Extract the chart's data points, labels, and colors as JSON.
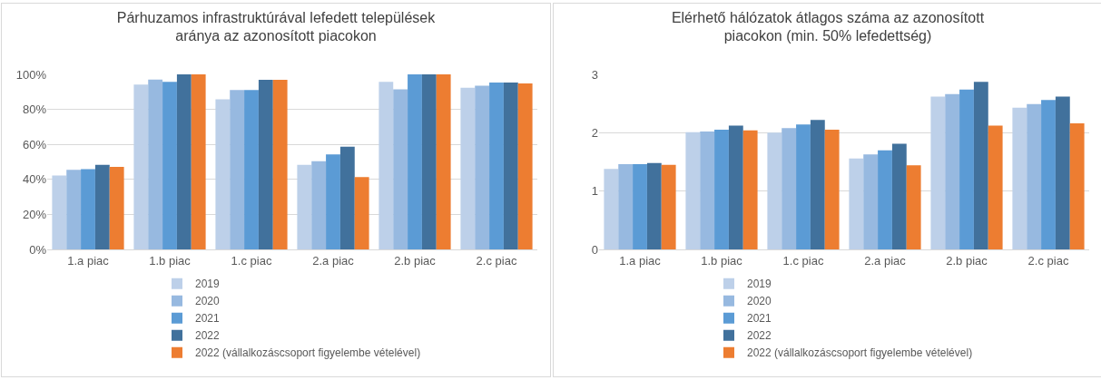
{
  "chart_data": [
    {
      "type": "bar",
      "title": "Párhuzamos infrastruktúrával lefedett települések\naránya az azonosított piacokon",
      "categories": [
        "1.a piac",
        "1.b piac",
        "1.c piac",
        "2.a piac",
        "2.b piac",
        "2.c piac"
      ],
      "series": [
        {
          "name": "2019",
          "color": "#bdd0e9",
          "values": [
            42.2,
            94.2,
            85.8,
            48.3,
            95.7,
            92.3
          ]
        },
        {
          "name": "2020",
          "color": "#97b9e0",
          "values": [
            45.5,
            97,
            91,
            50.4,
            91.5,
            93.5
          ]
        },
        {
          "name": "2021",
          "color": "#5b9bd5",
          "values": [
            45.8,
            95.7,
            91,
            54.3,
            100,
            95.4
          ]
        },
        {
          "name": "2022",
          "color": "#41719c",
          "values": [
            48.3,
            100,
            96.9,
            58.7,
            100,
            95.4
          ]
        },
        {
          "name": "2022 (vállalkozáscsoport figyelembe vételével)",
          "color": "#ed7d31",
          "values": [
            47.2,
            100,
            96.9,
            41.3,
            100,
            94.8
          ]
        }
      ],
      "ylim": [
        0,
        100
      ],
      "yticks": [
        {
          "value": 0,
          "label": "0%"
        },
        {
          "value": 20,
          "label": "20%"
        },
        {
          "value": 40,
          "label": "40%"
        },
        {
          "value": 60,
          "label": "60%"
        },
        {
          "value": 80,
          "label": "80%"
        },
        {
          "value": 100,
          "label": "100%"
        }
      ],
      "grid": "y",
      "legend": "bottom"
    },
    {
      "type": "bar",
      "title": "Elérhető hálózatok átlagos száma az azonosított\npiacokon (min. 50% lefedettség)",
      "categories": [
        "1.a piac",
        "1.b piac",
        "1.c piac",
        "2.a piac",
        "2.b piac",
        "2.c piac"
      ],
      "series": [
        {
          "name": "2019",
          "color": "#bdd0e9",
          "values": [
            1.38,
            2.01,
            2.0,
            1.56,
            2.62,
            2.43
          ]
        },
        {
          "name": "2020",
          "color": "#97b9e0",
          "values": [
            1.46,
            2.02,
            2.08,
            1.63,
            2.66,
            2.49
          ]
        },
        {
          "name": "2021",
          "color": "#5b9bd5",
          "values": [
            1.46,
            2.05,
            2.14,
            1.7,
            2.74,
            2.56
          ]
        },
        {
          "name": "2022",
          "color": "#41719c",
          "values": [
            1.48,
            2.12,
            2.22,
            1.81,
            2.87,
            2.62
          ]
        },
        {
          "name": "2022 (vállalkozáscsoport figyelembe vételével)",
          "color": "#ed7d31",
          "values": [
            1.45,
            2.04,
            2.05,
            1.44,
            2.12,
            2.16
          ]
        }
      ],
      "ylim": [
        0,
        3
      ],
      "yticks": [
        0,
        1,
        2,
        3
      ],
      "grid": "y",
      "legend": "bottom"
    }
  ]
}
